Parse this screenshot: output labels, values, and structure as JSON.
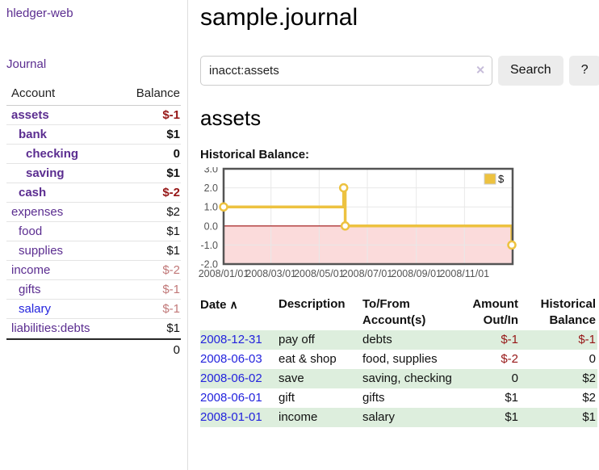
{
  "colors": {
    "purple": "#5b2d90",
    "blue": "#2323dd",
    "negative": "#961616",
    "negative_muted": "#c17878",
    "stripe": "#ddeedd"
  },
  "sidebar": {
    "app_title": "hledger-web",
    "nav": {
      "journal": "Journal"
    },
    "table": {
      "account_header": "Account",
      "balance_header": "Balance"
    },
    "accounts": [
      {
        "name": "assets",
        "level": 0,
        "bold": true,
        "link_color": "purple",
        "balance": "$-1",
        "balance_color": "negative"
      },
      {
        "name": "bank",
        "level": 1,
        "bold": true,
        "link_color": "purple",
        "balance": "$1",
        "balance_color": "normal"
      },
      {
        "name": "checking",
        "level": 2,
        "bold": true,
        "link_color": "purple",
        "balance": "0",
        "balance_color": "normal"
      },
      {
        "name": "saving",
        "level": 2,
        "bold": true,
        "link_color": "purple",
        "balance": "$1",
        "balance_color": "normal"
      },
      {
        "name": "cash",
        "level": 1,
        "bold": true,
        "link_color": "purple",
        "balance": "$-2",
        "balance_color": "negative"
      },
      {
        "name": "expenses",
        "level": 0,
        "bold": false,
        "link_color": "purple",
        "balance": "$2",
        "balance_color": "normal"
      },
      {
        "name": "food",
        "level": 1,
        "bold": false,
        "link_color": "purple",
        "balance": "$1",
        "balance_color": "normal"
      },
      {
        "name": "supplies",
        "level": 1,
        "bold": false,
        "link_color": "purple",
        "balance": "$1",
        "balance_color": "normal"
      },
      {
        "name": "income",
        "level": 0,
        "bold": false,
        "link_color": "purple",
        "balance": "$-2",
        "balance_color": "negative-muted"
      },
      {
        "name": "gifts",
        "level": 1,
        "bold": false,
        "link_color": "purple",
        "balance": "$-1",
        "balance_color": "negative-muted"
      },
      {
        "name": "salary",
        "level": 1,
        "bold": false,
        "link_color": "blue",
        "balance": "$-1",
        "balance_color": "negative-muted"
      },
      {
        "name": "liabilities:debts",
        "level": 0,
        "bold": false,
        "link_color": "purple",
        "balance": "$1",
        "balance_color": "normal"
      }
    ],
    "total": "0"
  },
  "header": {
    "title": "sample.journal"
  },
  "search": {
    "value": "inacct:assets",
    "clear_icon": "✕",
    "button_label": "Search",
    "help_label": "?"
  },
  "account_page": {
    "heading": "assets",
    "chart_label": "Historical Balance:"
  },
  "chart_data": {
    "type": "line",
    "title": "Historical Balance",
    "x_range": [
      "2008/01/01",
      "2009/01/01"
    ],
    "ylim": [
      -2,
      3
    ],
    "y_ticks": [
      3,
      2,
      1,
      0,
      -1,
      -2
    ],
    "y_tick_labels": [
      "3.0",
      "2.0",
      "1.0",
      "0.0",
      "-1.0",
      "-2.0"
    ],
    "x_ticks": [
      "2008/01/01",
      "2008/03/01",
      "2008/05/01",
      "2008/07/01",
      "2008/09/01",
      "2008/11/01"
    ],
    "grid": true,
    "legend": {
      "label": "$",
      "position": "top-right"
    },
    "series": [
      {
        "name": "$",
        "points": [
          [
            "2008/01/01",
            1
          ],
          [
            "2008/06/01",
            1
          ],
          [
            "2008/06/01",
            2
          ],
          [
            "2008/06/03",
            2
          ],
          [
            "2008/06/03",
            0
          ],
          [
            "2008/12/31",
            0
          ],
          [
            "2008/12/31",
            -1
          ]
        ],
        "markers": [
          [
            "2008/01/01",
            1
          ],
          [
            "2008/06/01",
            2
          ],
          [
            "2008/06/03",
            0
          ],
          [
            "2008/12/31",
            -1
          ]
        ]
      }
    ],
    "colors": {
      "series": "#EDC240",
      "marker_fill": "#ffffff",
      "zero_line": "#9c0d0d",
      "negative_fill": "#fbdbdb",
      "grid": "#e8e8e8",
      "border": "#545454",
      "tick_text": "#545454"
    }
  },
  "register": {
    "headers": {
      "date": "Date",
      "sort_icon": "∧",
      "description": "Description",
      "account_line1": "To/From",
      "account_line2": "Account(s)",
      "amount_line1": "Amount",
      "amount_line2": "Out/In",
      "balance_line1": "Historical",
      "balance_line2": "Balance"
    },
    "rows": [
      {
        "date": "2008-12-31",
        "description": "pay off",
        "accounts": "debts",
        "amount": "$-1",
        "amount_negative": true,
        "balance": "$-1",
        "balance_negative": true,
        "shade": true
      },
      {
        "date": "2008-06-03",
        "description": "eat & shop",
        "accounts": "food, supplies",
        "amount": "$-2",
        "amount_negative": true,
        "balance": "0",
        "balance_negative": false,
        "shade": false
      },
      {
        "date": "2008-06-02",
        "description": "save",
        "accounts": "saving, checking",
        "amount": "0",
        "amount_negative": false,
        "balance": "$2",
        "balance_negative": false,
        "shade": true
      },
      {
        "date": "2008-06-01",
        "description": "gift",
        "accounts": "gifts",
        "amount": "$1",
        "amount_negative": false,
        "balance": "$2",
        "balance_negative": false,
        "shade": false
      },
      {
        "date": "2008-01-01",
        "description": "income",
        "accounts": "salary",
        "amount": "$1",
        "amount_negative": false,
        "balance": "$1",
        "balance_negative": false,
        "shade": true
      }
    ]
  }
}
